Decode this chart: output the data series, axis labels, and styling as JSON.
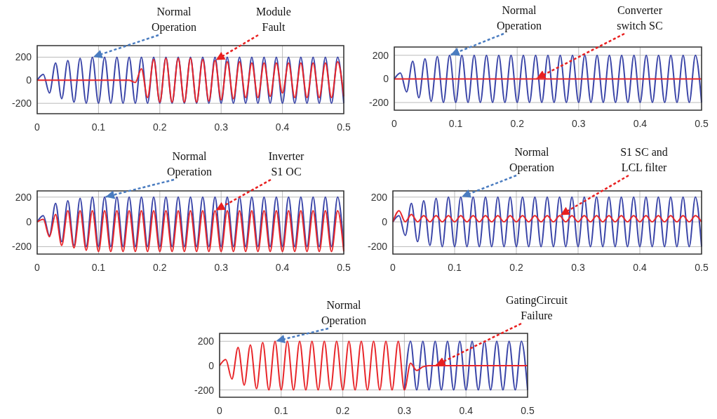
{
  "chart_data": [
    {
      "type": "line",
      "x": [
        0,
        0.01,
        0.02,
        0.03,
        0.04,
        0.05,
        0.06,
        0.07,
        0.08,
        0.09,
        0.1,
        0.11,
        0.12,
        0.13,
        0.14,
        0.15,
        0.16,
        0.17,
        0.18,
        0.19,
        0.2,
        0.21,
        0.22,
        0.23,
        0.24,
        0.25,
        0.26,
        0.27,
        0.28,
        0.29,
        0.3,
        0.31,
        0.32,
        0.33,
        0.34,
        0.35,
        0.36,
        0.37,
        0.38,
        0.39,
        0.4,
        0.41,
        0.42,
        0.43,
        0.44,
        0.45,
        0.46,
        0.47,
        0.48,
        0.49,
        0.5
      ],
      "xlim": [
        0,
        0.5
      ],
      "xticks": [
        0,
        0.1,
        0.2,
        0.3,
        0.4,
        0.5
      ],
      "ylim": [
        -290,
        300
      ],
      "yticks": [
        -200,
        0,
        200
      ],
      "grid": true,
      "series": [
        {
          "color": "#3a45a8",
          "values": [
            0,
            50,
            -110,
            150,
            -160,
            170,
            -190,
            190,
            -200,
            200,
            -200,
            200,
            -200,
            200,
            -200,
            200,
            -200,
            200,
            -200,
            200,
            -200,
            200,
            -200,
            200,
            -200,
            200,
            -200,
            200,
            -200,
            200,
            -200,
            200,
            -200,
            200,
            -200,
            200,
            -200,
            200,
            -200,
            200,
            -200,
            200,
            -200,
            200,
            -200,
            200,
            -200,
            200,
            -200,
            200,
            -200
          ]
        },
        {
          "color": "#e8262a",
          "values": [
            0,
            0,
            0,
            0,
            0,
            0,
            0,
            0,
            0,
            0,
            0,
            0,
            0,
            0,
            0,
            0,
            -20,
            100,
            -150,
            180,
            -190,
            190,
            -190,
            190,
            -190,
            190,
            -190,
            180,
            -180,
            170,
            -170,
            160,
            -160,
            160,
            -150,
            150,
            -150,
            150,
            -140,
            150,
            -110,
            150,
            -150,
            150,
            -150,
            150,
            -150,
            150,
            -150,
            160,
            -140
          ]
        }
      ],
      "annotations": [
        {
          "text": "Normal\nOperation",
          "x": 0.09,
          "y": 200
        },
        {
          "text": "Module\nFault",
          "x": 0.29,
          "y": 170
        }
      ]
    },
    {
      "type": "line",
      "x": [
        0,
        0.01,
        0.02,
        0.03,
        0.04,
        0.05,
        0.06,
        0.07,
        0.08,
        0.09,
        0.1,
        0.11,
        0.12,
        0.13,
        0.14,
        0.15,
        0.16,
        0.17,
        0.18,
        0.19,
        0.2,
        0.21,
        0.22,
        0.23,
        0.24,
        0.25,
        0.26,
        0.27,
        0.28,
        0.29,
        0.3,
        0.31,
        0.32,
        0.33,
        0.34,
        0.35,
        0.36,
        0.37,
        0.38,
        0.39,
        0.4,
        0.41,
        0.42,
        0.43,
        0.44,
        0.45,
        0.46,
        0.47,
        0.48,
        0.49,
        0.5
      ],
      "xlim": [
        0,
        0.5
      ],
      "xticks": [
        0,
        0.1,
        0.2,
        0.3,
        0.4,
        0.5
      ],
      "ylim": [
        -265,
        270
      ],
      "yticks": [
        -200,
        0,
        200
      ],
      "grid": true,
      "series": [
        {
          "color": "#3a45a8",
          "values": [
            0,
            50,
            -110,
            150,
            -160,
            170,
            -190,
            190,
            -200,
            200,
            -200,
            200,
            -200,
            200,
            -200,
            200,
            -200,
            200,
            -200,
            200,
            -200,
            200,
            -200,
            200,
            -200,
            200,
            -200,
            200,
            -200,
            200,
            -200,
            200,
            -200,
            200,
            -200,
            200,
            -200,
            200,
            -200,
            200,
            -200,
            200,
            -200,
            200,
            -200,
            200,
            -200,
            200,
            -200,
            200,
            -200
          ]
        },
        {
          "color": "#e8262a",
          "values": [
            0,
            0,
            0,
            0,
            0,
            0,
            0,
            0,
            0,
            0,
            0,
            0,
            0,
            0,
            0,
            0,
            0,
            0,
            0,
            0,
            0,
            0,
            0,
            0,
            0,
            0,
            0,
            0,
            0,
            0,
            0,
            0,
            0,
            0,
            0,
            0,
            0,
            0,
            0,
            0,
            0,
            0,
            0,
            0,
            0,
            0,
            0,
            0,
            0,
            0,
            0
          ]
        }
      ],
      "annotations": [
        {
          "text": "Normal\nOperation",
          "x": 0.09,
          "y": 200
        },
        {
          "text": "Converter\nswitch SC",
          "x": 0.23,
          "y": 0
        }
      ]
    },
    {
      "type": "line",
      "x": [
        0,
        0.01,
        0.02,
        0.03,
        0.04,
        0.05,
        0.06,
        0.07,
        0.08,
        0.09,
        0.1,
        0.11,
        0.12,
        0.13,
        0.14,
        0.15,
        0.16,
        0.17,
        0.18,
        0.19,
        0.2,
        0.21,
        0.22,
        0.23,
        0.24,
        0.25,
        0.26,
        0.27,
        0.28,
        0.29,
        0.3,
        0.31,
        0.32,
        0.33,
        0.34,
        0.35,
        0.36,
        0.37,
        0.38,
        0.39,
        0.4,
        0.41,
        0.42,
        0.43,
        0.44,
        0.45,
        0.46,
        0.47,
        0.48,
        0.49,
        0.5
      ],
      "xlim": [
        0,
        0.5
      ],
      "xticks": [
        0,
        0.1,
        0.2,
        0.3,
        0.4,
        0.5
      ],
      "ylim": [
        -260,
        250
      ],
      "yticks": [
        -200,
        0,
        200
      ],
      "grid": true,
      "series": [
        {
          "color": "#3a45a8",
          "values": [
            0,
            50,
            -110,
            150,
            -160,
            170,
            -190,
            190,
            -200,
            200,
            -200,
            200,
            -200,
            200,
            -200,
            200,
            -200,
            200,
            -200,
            200,
            -200,
            200,
            -200,
            200,
            -200,
            200,
            -200,
            200,
            -200,
            200,
            -200,
            200,
            -200,
            200,
            -200,
            200,
            -200,
            200,
            -200,
            200,
            -200,
            200,
            -200,
            200,
            -200,
            200,
            -200,
            200,
            -200,
            200,
            -200
          ]
        },
        {
          "color": "#e8262a",
          "values": [
            0,
            20,
            -120,
            60,
            -190,
            90,
            -210,
            90,
            -230,
            90,
            -240,
            90,
            -240,
            90,
            -240,
            90,
            -240,
            90,
            -240,
            90,
            -240,
            90,
            -240,
            90,
            -240,
            90,
            -240,
            90,
            -240,
            90,
            -240,
            90,
            -240,
            90,
            -240,
            90,
            -240,
            90,
            -240,
            90,
            -240,
            90,
            -240,
            90,
            -240,
            90,
            -240,
            90,
            -240,
            90,
            -240
          ]
        }
      ],
      "annotations": [
        {
          "text": "Normal\nOperation",
          "x": 0.11,
          "y": 200
        },
        {
          "text": "Inverter\nS1 OC",
          "x": 0.29,
          "y": 90
        }
      ]
    },
    {
      "type": "line",
      "x": [
        0,
        0.01,
        0.02,
        0.03,
        0.04,
        0.05,
        0.06,
        0.07,
        0.08,
        0.09,
        0.1,
        0.11,
        0.12,
        0.13,
        0.14,
        0.15,
        0.16,
        0.17,
        0.18,
        0.19,
        0.2,
        0.21,
        0.22,
        0.23,
        0.24,
        0.25,
        0.26,
        0.27,
        0.28,
        0.29,
        0.3,
        0.31,
        0.32,
        0.33,
        0.34,
        0.35,
        0.36,
        0.37,
        0.38,
        0.39,
        0.4,
        0.41,
        0.42,
        0.43,
        0.44,
        0.45,
        0.46,
        0.47,
        0.48,
        0.49,
        0.5
      ],
      "xlim": [
        0,
        0.5
      ],
      "xticks": [
        0,
        0.1,
        0.2,
        0.3,
        0.4,
        0.5
      ],
      "ylim": [
        -260,
        250
      ],
      "yticks": [
        -200,
        0,
        200
      ],
      "grid": true,
      "series": [
        {
          "color": "#3a45a8",
          "values": [
            0,
            50,
            -110,
            150,
            -160,
            170,
            -190,
            190,
            -200,
            200,
            -200,
            200,
            -200,
            200,
            -200,
            200,
            -200,
            200,
            -200,
            200,
            -200,
            200,
            -200,
            200,
            -200,
            200,
            -200,
            200,
            -200,
            200,
            -200,
            200,
            -200,
            200,
            -200,
            200,
            -200,
            200,
            -200,
            200,
            -200,
            200,
            -200,
            200,
            -200,
            200,
            -200,
            200,
            -200,
            200,
            -200
          ]
        },
        {
          "color": "#e8262a",
          "values": [
            0,
            90,
            0,
            60,
            0,
            50,
            0,
            50,
            0,
            50,
            0,
            50,
            0,
            50,
            0,
            50,
            0,
            50,
            0,
            50,
            0,
            50,
            0,
            50,
            0,
            50,
            0,
            50,
            0,
            50,
            0,
            50,
            0,
            50,
            0,
            50,
            0,
            50,
            0,
            50,
            0,
            50,
            0,
            50,
            0,
            50,
            0,
            50,
            0,
            50,
            0
          ]
        }
      ],
      "annotations": [
        {
          "text": "Normal\nOperation",
          "x": 0.11,
          "y": 200
        },
        {
          "text": "S1 SC and\nLCL filter",
          "x": 0.27,
          "y": 50
        }
      ]
    },
    {
      "type": "line",
      "x": [
        0,
        0.01,
        0.02,
        0.03,
        0.04,
        0.05,
        0.06,
        0.07,
        0.08,
        0.09,
        0.1,
        0.11,
        0.12,
        0.13,
        0.14,
        0.15,
        0.16,
        0.17,
        0.18,
        0.19,
        0.2,
        0.21,
        0.22,
        0.23,
        0.24,
        0.25,
        0.26,
        0.27,
        0.28,
        0.29,
        0.3,
        0.31,
        0.32,
        0.33,
        0.34,
        0.35,
        0.36,
        0.37,
        0.38,
        0.39,
        0.4,
        0.41,
        0.42,
        0.43,
        0.44,
        0.45,
        0.46,
        0.47,
        0.48,
        0.49,
        0.5
      ],
      "xlim": [
        0,
        0.5
      ],
      "xticks": [
        0,
        0.1,
        0.2,
        0.3,
        0.4,
        0.5
      ],
      "ylim": [
        -260,
        265
      ],
      "yticks": [
        -200,
        0,
        200
      ],
      "grid": true,
      "series": [
        {
          "color": "#3a45a8",
          "values": [
            null,
            null,
            null,
            null,
            null,
            null,
            null,
            null,
            null,
            null,
            null,
            null,
            null,
            null,
            null,
            null,
            null,
            null,
            null,
            null,
            null,
            null,
            null,
            null,
            null,
            null,
            null,
            null,
            null,
            null,
            -200,
            200,
            -200,
            200,
            -200,
            200,
            -200,
            200,
            -200,
            200,
            -200,
            200,
            -200,
            200,
            -200,
            200,
            -200,
            200,
            -200,
            200,
            -200
          ]
        },
        {
          "color": "#e8262a",
          "values": [
            0,
            50,
            -110,
            150,
            -160,
            170,
            -190,
            190,
            -200,
            200,
            -200,
            200,
            -200,
            200,
            -200,
            200,
            -200,
            200,
            -200,
            200,
            -200,
            200,
            -200,
            200,
            -200,
            200,
            -200,
            200,
            -200,
            200,
            -200,
            20,
            -40,
            -10,
            0,
            0,
            0,
            0,
            0,
            0,
            0,
            0,
            0,
            0,
            0,
            0,
            0,
            0,
            0,
            0,
            0
          ]
        }
      ],
      "annotations": [
        {
          "text": "Normal\nOperation",
          "x": 0.09,
          "y": 200
        },
        {
          "text": "GatingCircuit\nFailure",
          "x": 0.35,
          "y": 0
        }
      ]
    }
  ]
}
